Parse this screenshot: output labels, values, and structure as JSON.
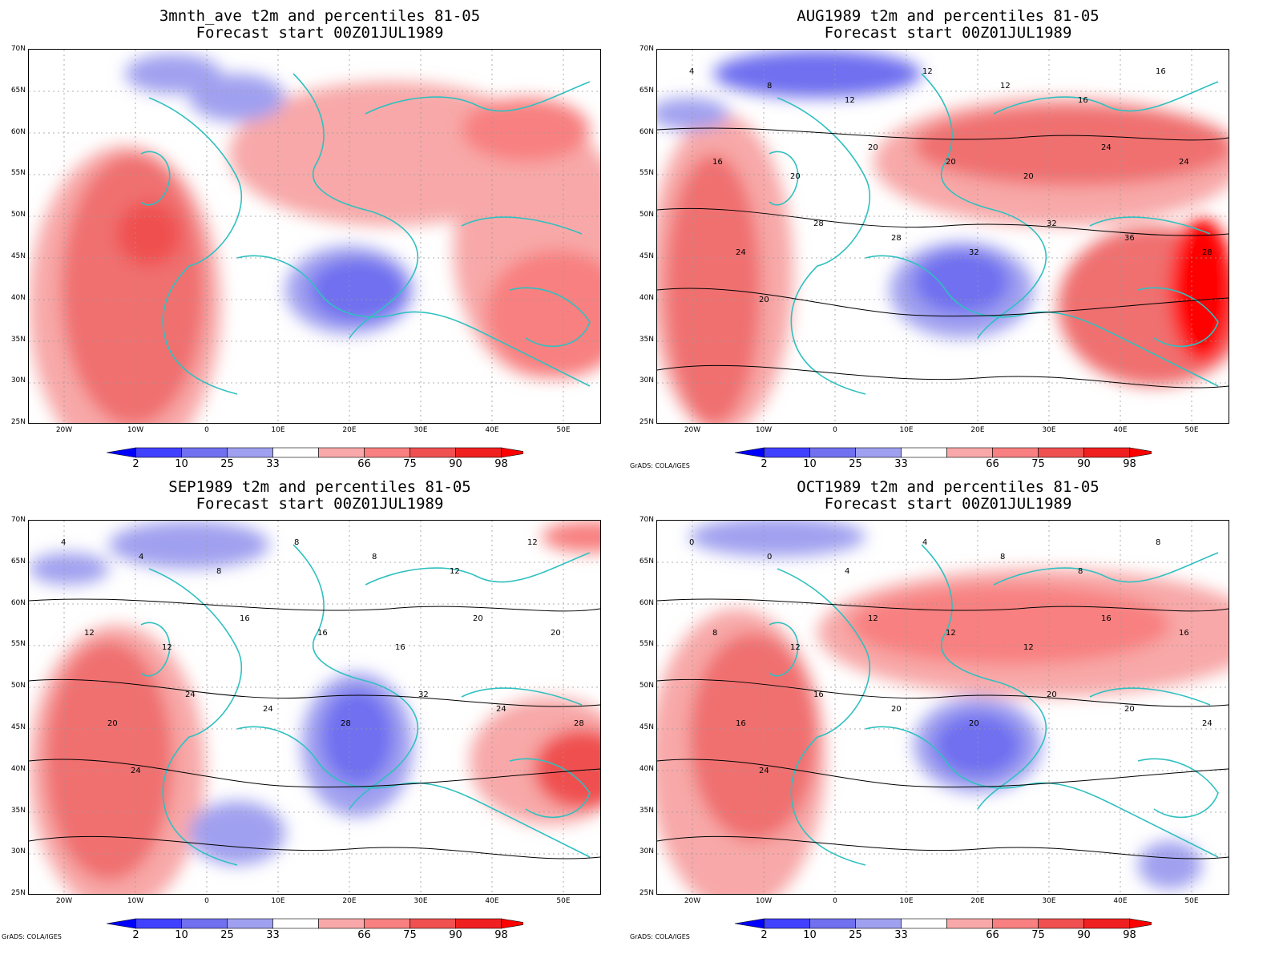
{
  "panels": [
    {
      "title1": "3mnth_ave t2m and percentiles 81-05",
      "title2": "Forecast start 00Z01JUL1989",
      "credit": "",
      "contours": []
    },
    {
      "title1": "AUG1989 t2m and percentiles 81-05",
      "title2": "Forecast start 00Z01JUL1989",
      "credit": "GrADS: COLA/IGES",
      "contours": [
        "4",
        "8",
        "12",
        "12",
        "12",
        "16",
        "16",
        "16",
        "20",
        "20",
        "20",
        "20",
        "24",
        "24",
        "24",
        "28",
        "28",
        "32",
        "32",
        "36",
        "28",
        "20"
      ]
    },
    {
      "title1": "SEP1989 t2m and percentiles 81-05",
      "title2": "Forecast start 00Z01JUL1989",
      "credit": "GrADS: COLA/IGES",
      "contours": [
        "4",
        "4",
        "8",
        "8",
        "8",
        "12",
        "12",
        "12",
        "12",
        "16",
        "16",
        "16",
        "20",
        "20",
        "20",
        "24",
        "24",
        "28",
        "32",
        "24",
        "28",
        "24"
      ]
    },
    {
      "title1": "OCT1989 t2m and percentiles 81-05",
      "title2": "Forecast start 00Z01JUL1989",
      "credit": "GrADS: COLA/IGES",
      "contours": [
        "0",
        "0",
        "4",
        "4",
        "8",
        "8",
        "8",
        "8",
        "12",
        "12",
        "12",
        "12",
        "16",
        "16",
        "16",
        "16",
        "20",
        "20",
        "20",
        "20",
        "24",
        "24"
      ]
    }
  ],
  "lat_labels": [
    "70N",
    "65N",
    "60N",
    "55N",
    "50N",
    "45N",
    "40N",
    "35N",
    "30N",
    "25N"
  ],
  "lon_labels": [
    "20W",
    "10W",
    "0",
    "10E",
    "20E",
    "30E",
    "40E",
    "50E"
  ],
  "colorbar": {
    "labels": [
      "2",
      "10",
      "25",
      "33",
      "66",
      "75",
      "90",
      "98"
    ],
    "colors": [
      "#0000ff",
      "#4040ff",
      "#7070f0",
      "#a0a0f0",
      "#ffffff",
      "#f8a8a8",
      "#f88080",
      "#f05050",
      "#f02020",
      "#ff0000"
    ]
  },
  "colors": {
    "coast": "#30c0c0",
    "contour": "#000000",
    "neg": "#6a6af0",
    "pos": "#f06060"
  }
}
